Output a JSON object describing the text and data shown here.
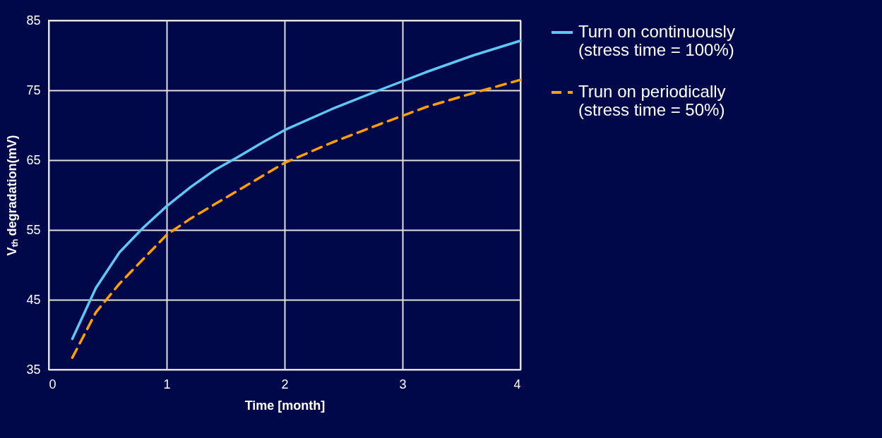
{
  "chart_data": {
    "type": "line",
    "xlabel": "Time [month]",
    "ylabel": "Vₜₕ degradation(mV)",
    "xlim": [
      0,
      4
    ],
    "xticks": [
      0,
      1,
      2,
      3,
      4
    ],
    "ylim": [
      35,
      85
    ],
    "yticks": [
      35,
      45,
      55,
      65,
      75,
      85
    ],
    "grid": true,
    "legend": "right",
    "marker": "none",
    "series": [
      {
        "name": "Turn on continuously (stress time = 100%)",
        "color": "#5ec8f5",
        "line_style": "solid",
        "x": [
          0.2,
          0.4,
          0.6,
          0.8,
          1,
          1.2,
          1.4,
          1.6,
          1.8,
          2,
          2.4,
          2.8,
          3.2,
          3.6,
          4
        ],
        "values": [
          39.4,
          46.7,
          51.8,
          55.3,
          58.4,
          61.1,
          63.5,
          65.4,
          67.4,
          69.3,
          72.3,
          75,
          77.6,
          80,
          82.1
        ]
      },
      {
        "name": "Trun on periodically (stress time = 50%)",
        "color": "#ffa000",
        "line_style": "dashed",
        "x": [
          0.2,
          0.4,
          0.6,
          0.8,
          1,
          1.2,
          1.4,
          1.6,
          1.8,
          2,
          2.4,
          2.8,
          3.2,
          3.6,
          4
        ],
        "values": [
          36.7,
          43.2,
          47.3,
          50.8,
          54.3,
          56.6,
          58.6,
          60.6,
          62.6,
          64.6,
          67.5,
          70.1,
          72.6,
          74.6,
          76.5
        ]
      }
    ]
  }
}
